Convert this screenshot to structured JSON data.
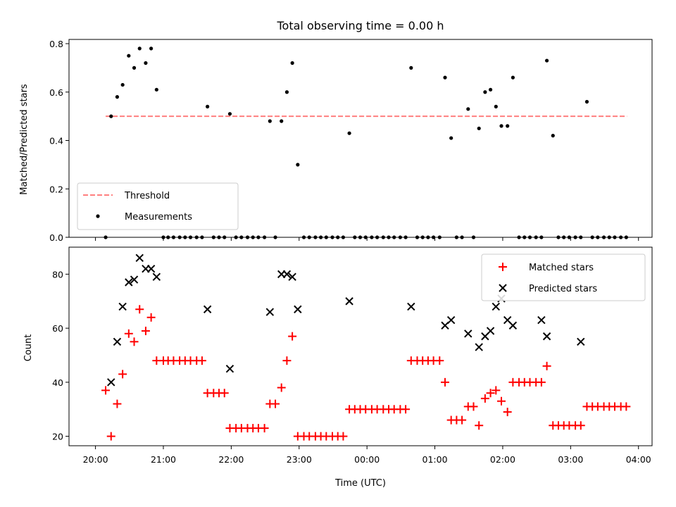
{
  "chart_data": [
    {
      "type": "scatter",
      "title": "Total observing time = 0.00 h",
      "xlabel": "",
      "ylabel": "Matched/Predicted stars",
      "x_unit": "hours since 20:00 UTC",
      "xlim": [
        -0.39,
        8.2
      ],
      "ylim": [
        0,
        0.8
      ],
      "yticks": [
        "0.0",
        "0.2",
        "0.4",
        "0.6",
        "0.8"
      ],
      "threshold": {
        "name": "Threshold",
        "value": 0.5,
        "x_range": [
          0.15,
          7.83
        ],
        "color": "#ff7f7f"
      },
      "series": [
        {
          "name": "Measurements",
          "color": "#000000",
          "x": [
            0.15,
            0.23,
            0.32,
            0.4,
            0.49,
            0.57,
            0.65,
            0.74,
            0.82,
            0.9,
            1.0,
            1.07,
            1.15,
            1.24,
            1.32,
            1.4,
            1.49,
            1.57,
            1.65,
            1.74,
            1.82,
            1.9,
            1.98,
            2.07,
            2.15,
            2.24,
            2.32,
            2.4,
            2.49,
            2.57,
            2.65,
            2.74,
            2.82,
            2.9,
            2.98,
            3.07,
            3.15,
            3.24,
            3.32,
            3.4,
            3.49,
            3.57,
            3.65,
            3.74,
            3.82,
            3.9,
            3.98,
            4.07,
            4.15,
            4.24,
            4.32,
            4.4,
            4.49,
            4.57,
            4.65,
            4.74,
            4.82,
            4.9,
            4.98,
            5.07,
            5.15,
            5.24,
            5.32,
            5.4,
            5.49,
            5.57,
            5.65,
            5.74,
            5.82,
            5.9,
            5.98,
            6.07,
            6.15,
            6.24,
            6.32,
            6.4,
            6.49,
            6.57,
            6.65,
            6.74,
            6.82,
            6.9,
            6.98,
            7.07,
            7.15,
            7.24,
            7.32,
            7.4,
            7.49,
            7.57,
            7.65,
            7.74,
            7.82
          ],
          "y": [
            0.0,
            0.5,
            0.58,
            0.63,
            0.75,
            0.7,
            0.78,
            0.72,
            0.78,
            0.61,
            0.0,
            0.0,
            0.0,
            0.0,
            0.0,
            0.0,
            0.0,
            0.0,
            0.54,
            0.0,
            0.0,
            0.0,
            0.51,
            0.0,
            0.0,
            0.0,
            0.0,
            0.0,
            0.0,
            0.48,
            0.0,
            0.48,
            0.6,
            0.72,
            0.3,
            0.0,
            0.0,
            0.0,
            0.0,
            0.0,
            0.0,
            0.0,
            0.0,
            0.43,
            0.0,
            0.0,
            0.0,
            0.0,
            0.0,
            0.0,
            0.0,
            0.0,
            0.0,
            0.0,
            0.7,
            0.0,
            0.0,
            0.0,
            0.0,
            0.0,
            0.66,
            0.41,
            0.0,
            0.0,
            0.53,
            0.0,
            0.45,
            0.6,
            0.61,
            0.54,
            0.46,
            0.46,
            0.66,
            0.0,
            0.0,
            0.0,
            0.0,
            0.0,
            0.73,
            0.42,
            0.0,
            0.0,
            0.0,
            0.0,
            0.0,
            0.56,
            0.0,
            0.0,
            0.0,
            0.0,
            0.0,
            0.0,
            0.0
          ]
        }
      ],
      "legend": {
        "placement": "lower-left",
        "entries": [
          "Threshold",
          "Measurements"
        ]
      },
      "grid": false
    },
    {
      "type": "scatter",
      "title": "",
      "xlabel": "Time (UTC)",
      "ylabel": "Count",
      "x_unit": "hours since 20:00 UTC",
      "xlim": [
        -0.39,
        8.2
      ],
      "ylim": [
        16.5,
        90
      ],
      "xticks": [
        "20:00",
        "21:00",
        "22:00",
        "23:00",
        "00:00",
        "01:00",
        "02:00",
        "03:00",
        "04:00"
      ],
      "yticks": [
        "20",
        "40",
        "60",
        "80"
      ],
      "series": [
        {
          "name": "Matched stars",
          "marker": "+",
          "color": "#ff0000",
          "x": [
            0.15,
            0.23,
            0.32,
            0.4,
            0.49,
            0.57,
            0.65,
            0.74,
            0.82,
            0.9,
            1.0,
            1.07,
            1.15,
            1.24,
            1.32,
            1.4,
            1.49,
            1.57,
            1.65,
            1.74,
            1.82,
            1.9,
            1.98,
            2.07,
            2.15,
            2.24,
            2.32,
            2.4,
            2.49,
            2.57,
            2.65,
            2.74,
            2.82,
            2.9,
            2.98,
            3.07,
            3.15,
            3.24,
            3.32,
            3.4,
            3.49,
            3.57,
            3.65,
            3.74,
            3.82,
            3.9,
            3.98,
            4.07,
            4.15,
            4.24,
            4.32,
            4.4,
            4.49,
            4.57,
            4.65,
            4.74,
            4.82,
            4.9,
            4.98,
            5.07,
            5.15,
            5.24,
            5.32,
            5.4,
            5.49,
            5.57,
            5.65,
            5.74,
            5.82,
            5.9,
            5.98,
            6.07,
            6.15,
            6.24,
            6.32,
            6.4,
            6.49,
            6.57,
            6.65,
            6.74,
            6.82,
            6.9,
            6.98,
            7.07,
            7.15,
            7.24,
            7.32,
            7.4,
            7.49,
            7.57,
            7.65,
            7.74,
            7.82
          ],
          "y": [
            37,
            20,
            32,
            43,
            58,
            55,
            67,
            59,
            64,
            48,
            48,
            48,
            48,
            48,
            48,
            48,
            48,
            48,
            36,
            36,
            36,
            36,
            23,
            23,
            23,
            23,
            23,
            23,
            23,
            32,
            32,
            38,
            48,
            57,
            20,
            20,
            20,
            20,
            20,
            20,
            20,
            20,
            20,
            30,
            30,
            30,
            30,
            30,
            30,
            30,
            30,
            30,
            30,
            30,
            48,
            48,
            48,
            48,
            48,
            48,
            40,
            26,
            26,
            26,
            31,
            31,
            24,
            34,
            36,
            37,
            33,
            29,
            40,
            40,
            40,
            40,
            40,
            40,
            46,
            24,
            24,
            24,
            24,
            24,
            24,
            31,
            31,
            31,
            31,
            31,
            31,
            31,
            31
          ]
        },
        {
          "name": "Predicted stars",
          "marker": "x",
          "color": "#000000",
          "x": [
            0.23,
            0.32,
            0.4,
            0.49,
            0.57,
            0.65,
            0.74,
            0.82,
            0.9,
            1.65,
            1.98,
            2.57,
            2.74,
            2.82,
            2.9,
            2.98,
            3.74,
            4.65,
            5.15,
            5.24,
            5.49,
            5.65,
            5.74,
            5.82,
            5.9,
            5.98,
            6.07,
            6.15,
            6.57,
            6.65,
            7.15
          ],
          "y": [
            40,
            55,
            68,
            77,
            78,
            86,
            82,
            82,
            79,
            67,
            45,
            66,
            80,
            80,
            79,
            67,
            70,
            68,
            61,
            63,
            58,
            53,
            57,
            59,
            68,
            71,
            63,
            61,
            63,
            57,
            55
          ]
        }
      ],
      "legend": {
        "placement": "top-right",
        "entries": [
          "Matched stars",
          "Predicted stars"
        ]
      },
      "grid": false
    }
  ]
}
